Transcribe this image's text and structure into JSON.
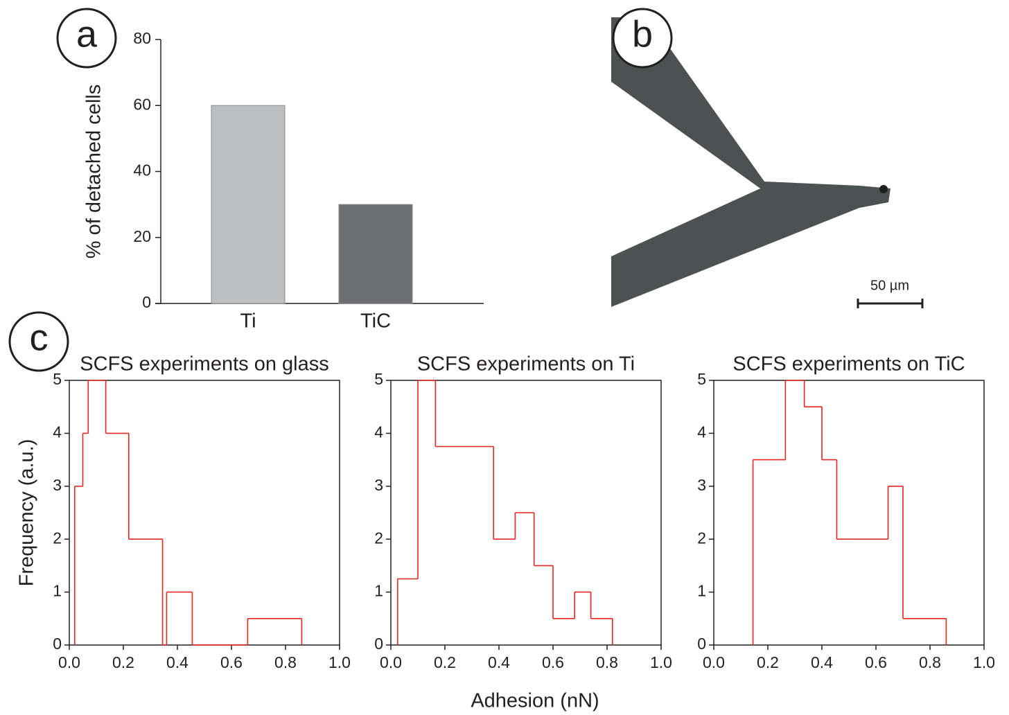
{
  "panels": {
    "labels": [
      "a",
      "b",
      "c"
    ]
  },
  "micrograph": {
    "scale_bar": "50 µm"
  },
  "shared_xlabel": "Adhesion (nN)",
  "chart_data": [
    {
      "type": "bar",
      "ylabel": "% of detached cells",
      "categories": [
        "Ti",
        "TiC"
      ],
      "values": [
        60,
        30
      ],
      "colors": [
        "#bcbec0",
        "#6d6e71"
      ],
      "ylim": [
        0,
        80
      ],
      "yticks": [
        0,
        20,
        40,
        60,
        80
      ]
    },
    {
      "type": "histogram",
      "title": "SCFS experiments on glass",
      "ylabel": "Frequency (a.u.)",
      "color": "#e8251f",
      "bins": [
        0.02,
        0.05,
        0.07,
        0.135,
        0.22,
        0.345,
        0.36,
        0.455,
        0.66,
        0.86
      ],
      "counts": [
        3,
        4,
        5,
        4,
        2,
        0,
        1,
        0,
        0.5
      ],
      "xlim": [
        0,
        1
      ],
      "xticks": [
        {
          "value": 0,
          "label": "0.0"
        },
        0.2,
        0.4,
        0.6,
        0.8,
        {
          "value": 1,
          "label": "1.0"
        }
      ],
      "ylim": [
        0,
        5
      ],
      "yticks": [
        0,
        1,
        2,
        3,
        4,
        5
      ]
    },
    {
      "type": "histogram",
      "title": "SCFS experiments on Ti",
      "color": "#e8251f",
      "bins": [
        0.025,
        0.1,
        0.165,
        0.38,
        0.46,
        0.53,
        0.6,
        0.68,
        0.74,
        0.82
      ],
      "counts": [
        1.25,
        5,
        3.75,
        2,
        2.5,
        1.5,
        0.5,
        1,
        0.5
      ],
      "xlim": [
        0,
        1
      ],
      "xticks": [
        {
          "value": 0,
          "label": "0.0"
        },
        0.2,
        0.4,
        0.6,
        0.8,
        {
          "value": 1,
          "label": "1.0"
        }
      ],
      "ylim": [
        0,
        5
      ],
      "yticks": [
        0,
        1,
        2,
        3,
        4,
        5
      ]
    },
    {
      "type": "histogram",
      "title": "SCFS experiments on TiC",
      "color": "#e8251f",
      "bins": [
        0.145,
        0.265,
        0.335,
        0.4,
        0.455,
        0.645,
        0.7,
        0.86
      ],
      "counts": [
        3.5,
        5,
        4.5,
        3.5,
        2,
        3,
        0.5
      ],
      "xlim": [
        0,
        1
      ],
      "xticks": [
        {
          "value": 0,
          "label": "0.0"
        },
        0.2,
        0.4,
        0.6,
        0.8,
        {
          "value": 1,
          "label": "1.0"
        }
      ],
      "ylim": [
        0,
        5
      ],
      "yticks": [
        0,
        1,
        2,
        3,
        4,
        5
      ]
    }
  ]
}
